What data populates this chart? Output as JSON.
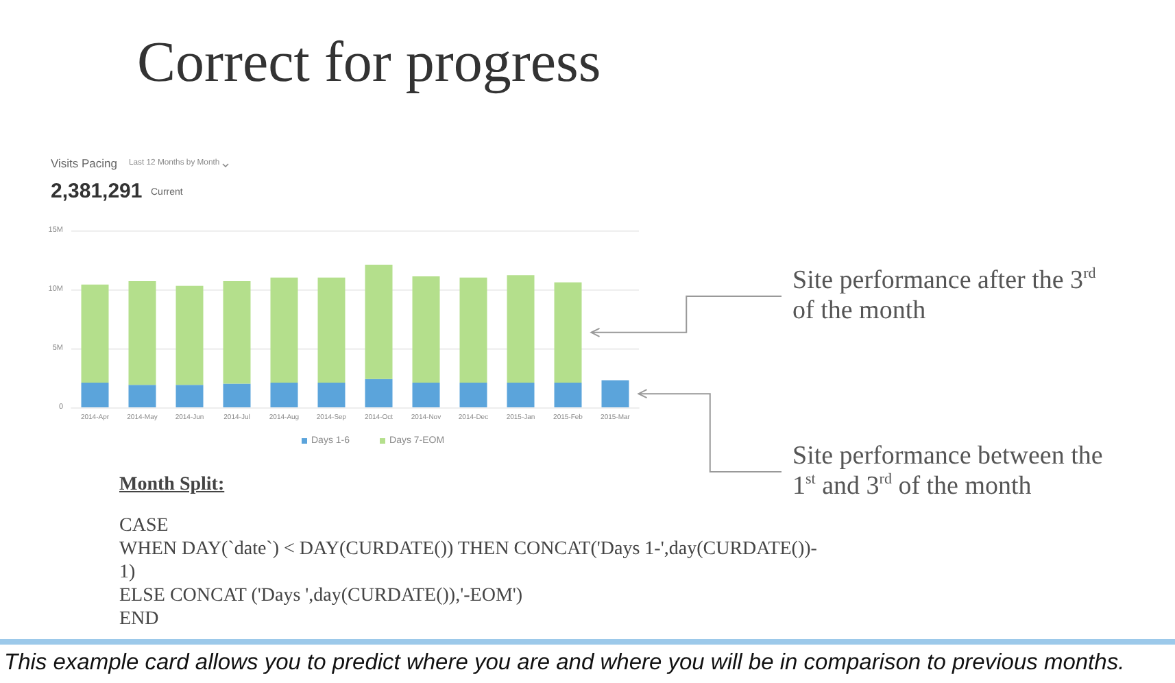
{
  "chart_data": {
    "type": "bar",
    "title": "Correct for progress",
    "subtitle": "Visits Pacing",
    "categories": [
      "2014-Apr",
      "2014-May",
      "2014-Jun",
      "2014-Jul",
      "2014-Aug",
      "2014-Sep",
      "2014-Oct",
      "2014-Nov",
      "2014-Dec",
      "2015-Jan",
      "2015-Feb",
      "2015-Mar"
    ],
    "series": [
      {
        "name": "Days 1-6",
        "color": "#5ba4db",
        "values": [
          2100000,
          1900000,
          1900000,
          2000000,
          2100000,
          2100000,
          2400000,
          2100000,
          2100000,
          2100000,
          2100000,
          2300000
        ]
      },
      {
        "name": "Days 7-EOM",
        "color": "#b4df8c",
        "values": [
          8300000,
          8800000,
          8400000,
          8700000,
          8900000,
          8900000,
          9700000,
          9000000,
          8900000,
          9100000,
          8500000,
          null
        ]
      }
    ],
    "stacked": true,
    "ylim": [
      0,
      15000000
    ],
    "yticks": [
      0,
      {
        "value": 5000000,
        "label": "5M"
      },
      {
        "value": 10000000,
        "label": "10M"
      },
      {
        "value": 15000000,
        "label": "15M"
      }
    ],
    "grid": "y",
    "legend": "bottom",
    "annotations": [
      "Last 12 Months by Month",
      "2,381,291",
      "Current",
      "Site performance after the 3$^{rd}$ of the month",
      "Site performance between the 1$^{st}$ and 3$^{rd}$ of the month",
      "Month Split:",
      "CASE",
      "WHEN DAY(`date`) < DAY(CURDATE()) THEN CONCAT('Days 1-',day(CURDATE())-1)",
      "ELSE CONCAT ('Days ',day(CURDATE()),'-EOM')",
      "END",
      "This example card allows you to predict where you are and where you will be in comparison to previous months."
    ]
  }
}
